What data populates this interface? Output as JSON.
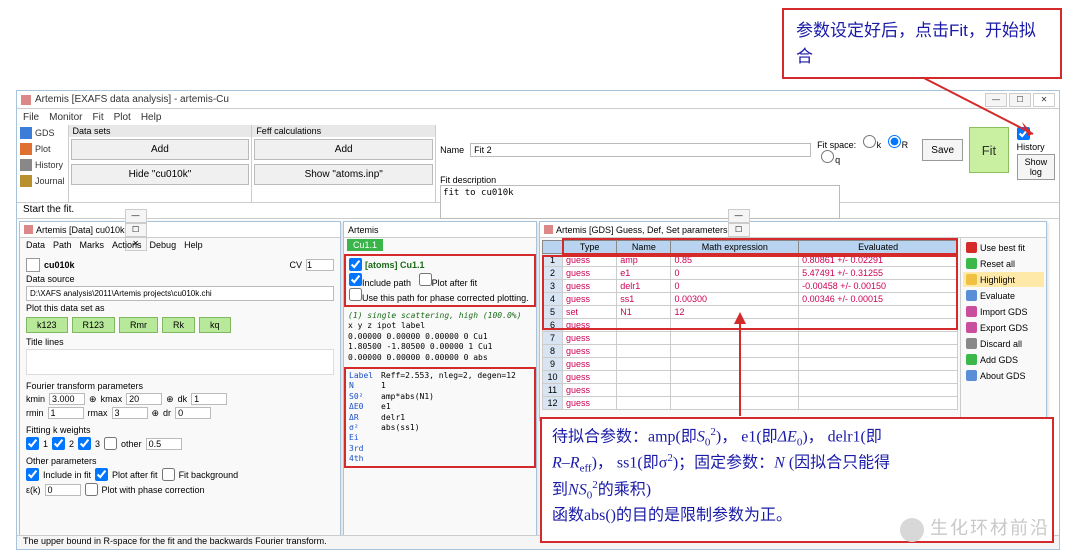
{
  "callout_top": "参数设定好后，点击Fit，开始拟合",
  "main_title": "Artemis [EXAFS data analysis] - artemis-Cu",
  "main_menu": [
    "File",
    "Monitor",
    "Fit",
    "Plot",
    "Help"
  ],
  "left_toolbar": [
    {
      "icon": "#3b7dd8",
      "label": "GDS"
    },
    {
      "icon": "#e07030",
      "label": "Plot"
    },
    {
      "icon": "#888",
      "label": "History"
    },
    {
      "icon": "#b89030",
      "label": "Journal"
    }
  ],
  "datasets": {
    "header": "Data sets",
    "add": "Add",
    "hide": "Hide \"cu010k\""
  },
  "feff": {
    "header": "Feff calculations",
    "add": "Add",
    "show": "Show \"atoms.inp\""
  },
  "fitpanel": {
    "name_label": "Name",
    "name_value": "Fit 2",
    "space_label": "Fit space:",
    "opts": [
      "k",
      "R",
      "q"
    ],
    "selected": "R",
    "desc_label": "Fit description",
    "desc_value": "fit to cu010k",
    "save": "Save",
    "fit": "Fit",
    "history": "History",
    "showlog": "Show log"
  },
  "start_label": "Start the fit.",
  "data_win": {
    "title": "Artemis [Data] cu010k",
    "menu": [
      "Data",
      "Path",
      "Marks",
      "Actions",
      "Debug",
      "Help"
    ],
    "name": "cu010k",
    "cv_label": "CV",
    "cv_value": "1",
    "source_label": "Data source",
    "source_path": "D:\\XAFS analysis\\2011\\Artemis projects\\cu010k.chi",
    "plotset_label": "Plot this data set as",
    "buttons": [
      "k123",
      "R123",
      "Rmr",
      "Rk",
      "kq"
    ],
    "title_lines": "Title lines",
    "ft_label": "Fourier transform parameters",
    "kmin": "3.000",
    "kmax": "20",
    "dk": "1",
    "rmin": "1",
    "rmax": "3",
    "dr": "0",
    "fitk_label": "Fitting k weights",
    "k1": "1",
    "k2": "2",
    "k3": "3",
    "other_label": "other",
    "other_val": "0.5",
    "other_params": "Other parameters",
    "include": "Include in fit",
    "plotafter": "Plot after fit",
    "fitbg": "Fit background",
    "eik_label": "ε(k)",
    "eik_val": "0",
    "phcorr": "Plot with phase correction"
  },
  "path_win": {
    "title": "Artemis",
    "tab": "Cu1.1",
    "atoms_label": "[atoms] Cu1.1",
    "include": "Include path",
    "plotafter": "Plot after fit",
    "usepath": "Use this path for phase corrected plotting.",
    "scatter_desc": "(1) single scattering, high (100.0%)",
    "scatter_cols": "   x        y        z       ipot  label",
    "scatter_r1": " 0.00000  0.00000  0.00000   0   Cu1",
    "scatter_r2": " 1.80500 -1.80500  0.00000   1   Cu1",
    "scatter_r3": " 0.00000  0.00000  0.00000   0   abs",
    "params": [
      {
        "k": "Label",
        "v": "Reff=2.553, nleg=2, degen=12"
      },
      {
        "k": "N",
        "v": "1"
      },
      {
        "k": "S0²",
        "v": "amp*abs(N1)"
      },
      {
        "k": "ΔE0",
        "v": "e1"
      },
      {
        "k": "ΔR",
        "v": "delr1"
      },
      {
        "k": "σ²",
        "v": "abs(ss1)"
      },
      {
        "k": "Ei",
        "v": ""
      },
      {
        "k": "3rd",
        "v": ""
      },
      {
        "k": "4th",
        "v": ""
      }
    ]
  },
  "gds_win": {
    "title": "Artemis [GDS] Guess, Def, Set parameters",
    "cols": [
      "Type",
      "Name",
      "Math expression",
      "Evaluated"
    ],
    "rows": [
      {
        "n": "1",
        "type": "guess",
        "name": "amp",
        "expr": "0.85",
        "eval": "0.80861 +/- 0.02291"
      },
      {
        "n": "2",
        "type": "guess",
        "name": "e1",
        "expr": "0",
        "eval": "5.47491 +/- 0.31255"
      },
      {
        "n": "3",
        "type": "guess",
        "name": "delr1",
        "expr": "0",
        "eval": "-0.00458 +/- 0.00150"
      },
      {
        "n": "4",
        "type": "guess",
        "name": "ss1",
        "expr": "0.00300",
        "eval": "0.00346 +/- 0.00015"
      },
      {
        "n": "5",
        "type": "set",
        "name": "N1",
        "expr": "12",
        "eval": ""
      },
      {
        "n": "6",
        "type": "guess",
        "name": "",
        "expr": "",
        "eval": ""
      },
      {
        "n": "7",
        "type": "guess",
        "name": "",
        "expr": "",
        "eval": ""
      },
      {
        "n": "8",
        "type": "guess",
        "name": "",
        "expr": "",
        "eval": ""
      },
      {
        "n": "9",
        "type": "guess",
        "name": "",
        "expr": "",
        "eval": ""
      },
      {
        "n": "10",
        "type": "guess",
        "name": "",
        "expr": "",
        "eval": ""
      },
      {
        "n": "11",
        "type": "guess",
        "name": "",
        "expr": "",
        "eval": ""
      },
      {
        "n": "12",
        "type": "guess",
        "name": "",
        "expr": "",
        "eval": ""
      }
    ],
    "side": [
      {
        "c": "#d42a2a",
        "l": "Use best fit"
      },
      {
        "c": "#3bb84a",
        "l": "Reset all"
      },
      {
        "c": "#f0c040",
        "l": "Highlight",
        "hl": true
      },
      {
        "c": "#5a8fd8",
        "l": "Evaluate"
      },
      {
        "c": "#c94f9e",
        "l": "Import GDS"
      },
      {
        "c": "#c94f9e",
        "l": "Export GDS"
      },
      {
        "c": "#888",
        "l": "Discard all"
      },
      {
        "c": "#3bb84a",
        "l": "Add GDS"
      },
      {
        "c": "#5a8fd8",
        "l": "About GDS"
      }
    ]
  },
  "annotation": "待拟合参数：amp(即S₀²)， e1(即ΔE₀)， delr1(即R–R_eff)， ss1(即σ²)；固定参数：N (因拟合只能得到NS₀²的乘积)\n函数abs()的目的是限制参数为正。",
  "status": "The upper bound in R-space for the fit and the backwards Fourier transform.",
  "watermark": "生化环材前沿",
  "colors": {
    "red": "#d42a2a",
    "blue": "#1a1aa8",
    "green_btn": "#b8e89a",
    "fit_green": "#c8f0a0"
  }
}
